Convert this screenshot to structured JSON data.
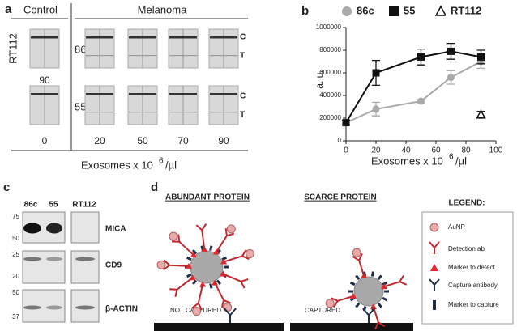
{
  "panel_a": {
    "label": "a",
    "groups": [
      "Control",
      "Melanoma"
    ],
    "cell_line": "RT112",
    "rows": [
      "86c",
      "55"
    ],
    "bands": [
      "C",
      "T",
      "C",
      "T"
    ],
    "control_top_label": "90",
    "concentrations": [
      "0",
      "20",
      "50",
      "70",
      "90"
    ],
    "xlabel": {
      "text": "Exosomes x 10",
      "sup": "6",
      "unit": "/µl"
    }
  },
  "chart_data": {
    "type": "line",
    "label": "b",
    "ylabel": "a. u.",
    "xlabel": {
      "text": "Exosomes x 10",
      "sup": "6",
      "unit": "/µl"
    },
    "xlim": [
      0,
      100
    ],
    "xticks": [
      0,
      20,
      40,
      60,
      80,
      100
    ],
    "ylim": [
      0,
      1000000
    ],
    "yticks": [
      0,
      200000,
      400000,
      600000,
      800000,
      1000000
    ],
    "series": [
      {
        "name": "86c",
        "color": "#aaaaaa",
        "marker": "circle",
        "x": [
          0,
          20,
          50,
          70,
          90
        ],
        "values": [
          160000,
          280000,
          350000,
          560000,
          700000
        ],
        "errors": [
          20000,
          60000,
          15000,
          60000,
          60000
        ]
      },
      {
        "name": "55",
        "color": "#111111",
        "marker": "square",
        "x": [
          0,
          20,
          50,
          70,
          90
        ],
        "values": [
          160000,
          600000,
          740000,
          790000,
          740000
        ],
        "errors": [
          20000,
          110000,
          70000,
          70000,
          60000
        ]
      },
      {
        "name": "RT112",
        "color": "#111111",
        "marker": "triangle",
        "x": [
          90
        ],
        "values": [
          230000
        ],
        "errors": [
          30000
        ]
      }
    ]
  },
  "panel_c": {
    "label": "c",
    "lanes": [
      "86c",
      "55",
      "RT112"
    ],
    "proteins": [
      "MICA",
      "CD9",
      "β-ACTIN"
    ],
    "markers": [
      "75",
      "50",
      "25",
      "20",
      "50",
      "37"
    ]
  },
  "panel_d": {
    "label": "d",
    "left_title": "ABUNDANT PROTEIN",
    "right_title": "SCARCE PROTEIN",
    "left_status": "NOT CAPTURED",
    "right_status": "CAPTURED",
    "legend_title": "LEGEND:",
    "legend": [
      "AuNP",
      "Detection ab",
      "Marker to detect",
      "Capture antibody",
      "Marker to capture"
    ]
  }
}
